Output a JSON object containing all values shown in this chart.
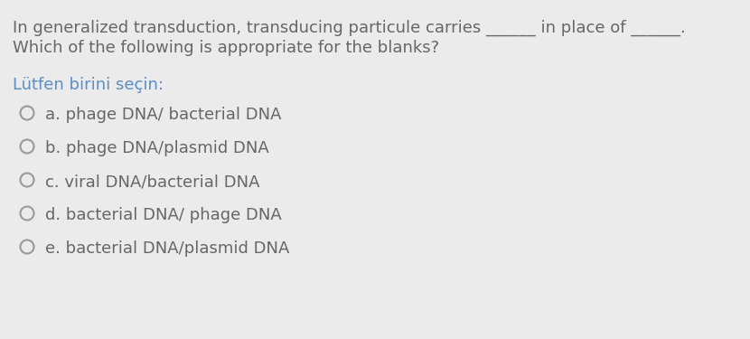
{
  "background_color": "#ebebeb",
  "question_line1": "In generalized transduction, transducing particule carries ______ in place of ______.",
  "question_line2": "Which of the following is appropriate for the blanks?",
  "prompt": "Lütfen birini seçin:",
  "options": [
    "a. phage DNA/ bacterial DNA",
    "b. phage DNA/plasmid DNA",
    "c. viral DNA/bacterial DNA",
    "d. bacterial DNA/ phage DNA",
    "e. bacterial DNA/plasmid DNA"
  ],
  "text_color": "#666666",
  "prompt_color": "#5b8ec4",
  "circle_edge_color": "#999999",
  "question_fontsize": 13,
  "prompt_fontsize": 13,
  "option_fontsize": 13,
  "fig_width": 8.3,
  "fig_height": 3.75,
  "dpi": 100
}
